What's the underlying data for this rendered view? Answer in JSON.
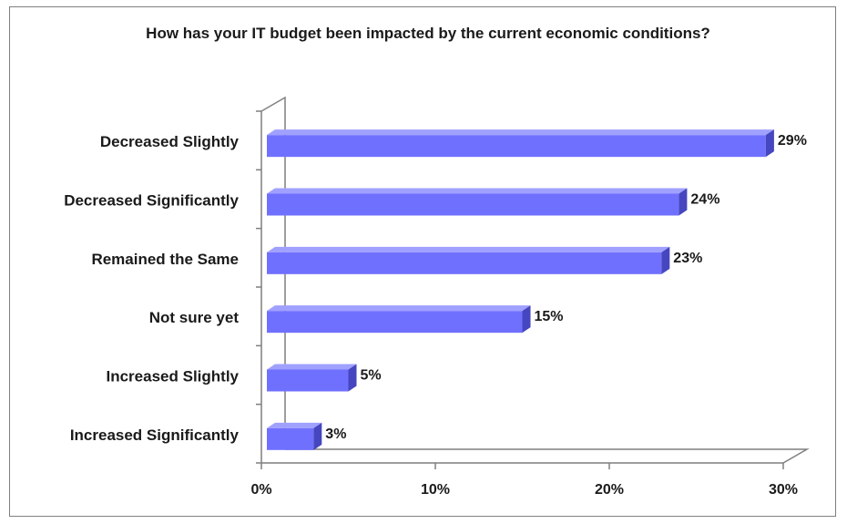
{
  "chart_data": {
    "type": "bar",
    "orientation": "horizontal",
    "title": "How has your IT budget been impacted by the current economic conditions?",
    "categories": [
      "Decreased Slightly",
      "Decreased Significantly",
      "Remained the Same",
      "Not sure yet",
      "Increased Slightly",
      "Increased Significantly"
    ],
    "values": [
      29,
      24,
      23,
      15,
      5,
      3
    ],
    "data_labels": [
      "29%",
      "24%",
      "23%",
      "15%",
      "5%",
      "3%"
    ],
    "x_ticks": [
      "0%",
      "10%",
      "20%",
      "30%"
    ],
    "xlim": [
      0,
      30
    ],
    "xlabel": "",
    "ylabel": "",
    "grid": false,
    "legend": "none",
    "style": "3d",
    "colors": {
      "bar_front": "#7070ff",
      "bar_top": "#a0a0ff",
      "bar_side": "#4646c0",
      "axis": "#7f7f7f"
    }
  }
}
